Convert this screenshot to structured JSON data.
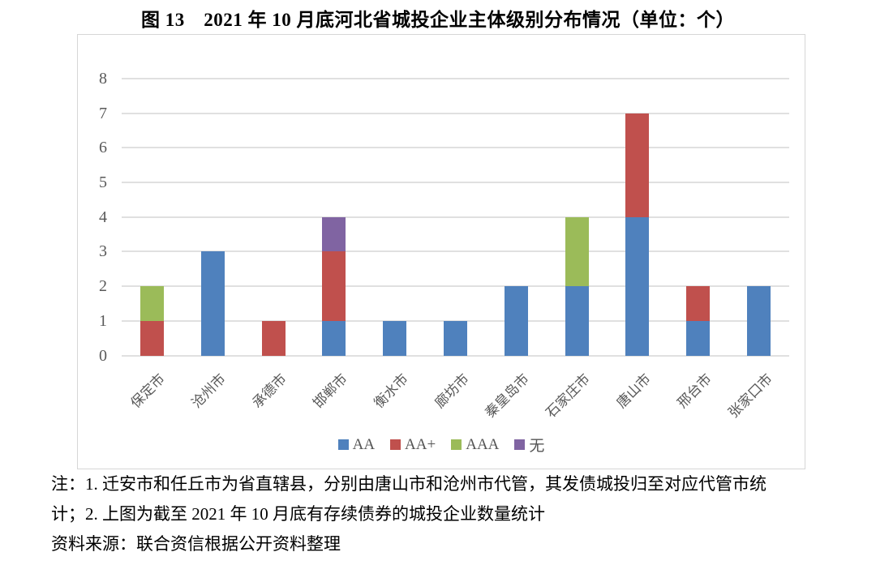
{
  "title": "图 13　2021 年 10 月底河北省城投企业主体级别分布情况（单位：个）",
  "chart_data": {
    "type": "bar",
    "stacked": true,
    "title": "图 13　2021 年 10 月底河北省城投企业主体级别分布情况（单位：个）",
    "categories": [
      "保定市",
      "沧州市",
      "承德市",
      "邯郸市",
      "衡水市",
      "廊坊市",
      "秦皇岛市",
      "石家庄市",
      "唐山市",
      "邢台市",
      "张家口市"
    ],
    "series": [
      {
        "name": "AA",
        "color": "#4F81BD",
        "values": [
          0,
          3,
          0,
          1,
          1,
          1,
          2,
          2,
          4,
          1,
          2
        ]
      },
      {
        "name": "AA+",
        "color": "#C0504D",
        "values": [
          1,
          0,
          1,
          2,
          0,
          0,
          0,
          0,
          3,
          1,
          0
        ]
      },
      {
        "name": "AAA",
        "color": "#9BBB59",
        "values": [
          1,
          0,
          0,
          0,
          0,
          0,
          0,
          2,
          0,
          0,
          0
        ]
      },
      {
        "name": "无",
        "color": "#8064A2",
        "values": [
          0,
          0,
          0,
          1,
          0,
          0,
          0,
          0,
          0,
          0,
          0
        ]
      }
    ],
    "totals": [
      2,
      3,
      1,
      4,
      1,
      1,
      2,
      4,
      7,
      2,
      2
    ],
    "ylim": [
      0,
      8
    ],
    "yticks": [
      0,
      1,
      2,
      3,
      4,
      5,
      6,
      7,
      8
    ],
    "grid": true,
    "legend_position": "bottom-center",
    "xlabel": "",
    "ylabel": ""
  },
  "notes": {
    "line1": "注：1. 迁安市和任丘市为省直辖县，分别由唐山市和沧州市代管，其发债城投归至对应代管市统",
    "line2": "计；2. 上图为截至 2021 年 10 月底有存续债券的城投企业数量统计",
    "source": "资料来源：联合资信根据公开资料整理"
  },
  "colors": {
    "grid": "#e0e0e0",
    "frame_border": "#d6d6d6",
    "axis_text": "#595959"
  }
}
